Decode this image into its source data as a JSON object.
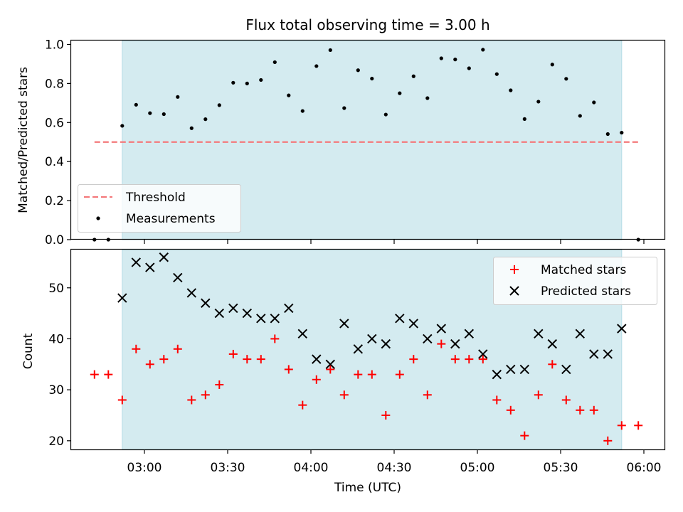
{
  "chart_data": [
    {
      "type": "scatter",
      "title": "Flux total observing time = 3.00 h",
      "xlabel": "",
      "ylabel": "Matched/Predicted stars",
      "ylim": [
        0.0,
        1.02
      ],
      "yticks": [
        "0.0",
        "0.2",
        "0.4",
        "0.6",
        "0.8",
        "1.0"
      ],
      "x_axis": "time (UTC), shared with lower panel",
      "shaded_interval": [
        "02:52",
        "05:52"
      ],
      "shade_color": "#d4ebf0",
      "legend": {
        "placement": "lower left",
        "entries": [
          "Threshold",
          "Measurements"
        ]
      },
      "series": [
        {
          "name": "Threshold",
          "style": "dashed-line",
          "color": "#f4797b",
          "x": [
            "02:42",
            "05:58"
          ],
          "y": [
            0.5,
            0.5
          ]
        },
        {
          "name": "Measurements",
          "style": "dot",
          "color": "#000000",
          "x": [
            "02:42",
            "02:47",
            "02:52",
            "02:57",
            "03:02",
            "03:07",
            "03:12",
            "03:17",
            "03:22",
            "03:27",
            "03:32",
            "03:37",
            "03:42",
            "03:47",
            "03:52",
            "03:57",
            "04:02",
            "04:07",
            "04:12",
            "04:17",
            "04:22",
            "04:27",
            "04:32",
            "04:37",
            "04:42",
            "04:47",
            "04:52",
            "04:57",
            "05:02",
            "05:07",
            "05:12",
            "05:17",
            "05:22",
            "05:27",
            "05:32",
            "05:37",
            "05:42",
            "05:47",
            "05:52",
            "05:58"
          ],
          "y": [
            0.0,
            0.0,
            0.583,
            0.691,
            0.648,
            0.643,
            0.731,
            0.571,
            0.617,
            0.689,
            0.804,
            0.8,
            0.818,
            0.909,
            0.739,
            0.659,
            0.889,
            0.971,
            0.674,
            0.868,
            0.825,
            0.641,
            0.75,
            0.837,
            0.725,
            0.929,
            0.923,
            0.878,
            0.973,
            0.848,
            0.765,
            0.618,
            0.707,
            0.897,
            0.824,
            0.634,
            0.703,
            0.541,
            0.548,
            0.0
          ]
        }
      ]
    },
    {
      "type": "scatter",
      "title": "",
      "xlabel": "Time (UTC)",
      "ylabel": "Count",
      "ylim": [
        18.3,
        57.5
      ],
      "yticks": [
        "20",
        "30",
        "40",
        "50"
      ],
      "xticks": [
        "03:00",
        "03:30",
        "04:00",
        "04:30",
        "05:00",
        "05:30",
        "06:00"
      ],
      "shaded_interval": [
        "02:52",
        "05:52"
      ],
      "shade_color": "#d4ebf0",
      "legend": {
        "placement": "upper right",
        "entries": [
          "Matched stars",
          "Predicted stars"
        ]
      },
      "series": [
        {
          "name": "Matched stars",
          "marker": "+",
          "color": "#ff0000",
          "x": [
            "02:42",
            "02:47",
            "02:52",
            "02:57",
            "03:02",
            "03:07",
            "03:12",
            "03:17",
            "03:22",
            "03:27",
            "03:32",
            "03:37",
            "03:42",
            "03:47",
            "03:52",
            "03:57",
            "04:02",
            "04:07",
            "04:12",
            "04:17",
            "04:22",
            "04:27",
            "04:32",
            "04:37",
            "04:42",
            "04:47",
            "04:52",
            "04:57",
            "05:02",
            "05:07",
            "05:12",
            "05:17",
            "05:22",
            "05:27",
            "05:32",
            "05:37",
            "05:42",
            "05:47",
            "05:52",
            "05:58"
          ],
          "y": [
            33,
            33,
            28,
            38,
            35,
            36,
            38,
            28,
            29,
            31,
            37,
            36,
            36,
            40,
            34,
            27,
            32,
            34,
            29,
            33,
            33,
            25,
            33,
            36,
            29,
            39,
            36,
            36,
            36,
            28,
            26,
            21,
            29,
            35,
            28,
            26,
            26,
            20,
            23,
            23
          ]
        },
        {
          "name": "Predicted stars",
          "marker": "x",
          "color": "#000000",
          "x": [
            "02:52",
            "02:57",
            "03:02",
            "03:07",
            "03:12",
            "03:17",
            "03:22",
            "03:27",
            "03:32",
            "03:37",
            "03:42",
            "03:47",
            "03:52",
            "03:57",
            "04:02",
            "04:07",
            "04:12",
            "04:17",
            "04:22",
            "04:27",
            "04:32",
            "04:37",
            "04:42",
            "04:47",
            "04:52",
            "04:57",
            "05:02",
            "05:07",
            "05:12",
            "05:17",
            "05:22",
            "05:27",
            "05:32",
            "05:37",
            "05:42",
            "05:47",
            "05:52"
          ],
          "y": [
            48,
            55,
            54,
            56,
            52,
            49,
            47,
            45,
            46,
            45,
            44,
            44,
            46,
            41,
            36,
            35,
            43,
            38,
            40,
            39,
            44,
            43,
            40,
            42,
            39,
            41,
            37,
            33,
            34,
            34,
            41,
            39,
            34,
            41,
            37,
            37,
            42
          ]
        }
      ]
    }
  ]
}
